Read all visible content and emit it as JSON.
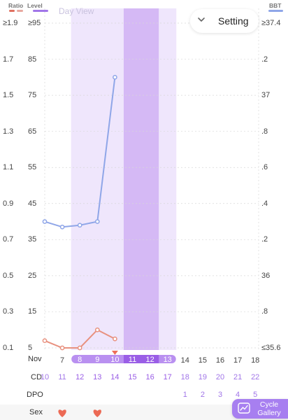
{
  "header": {
    "legend_ratio": "Ratio",
    "legend_level": "Level",
    "legend_bbt": "BBT",
    "view_title": "Day View",
    "setting_label": "Setting",
    "colors": {
      "ratio": "#e07060",
      "ratio_light": "#e8a8a0",
      "level": "#a176e8",
      "bbt": "#8fa6e8"
    }
  },
  "chart_data": {
    "type": "line",
    "y_ratio_ticks": [
      "≥1.9",
      "1.7",
      "1.5",
      "1.3",
      "1.1",
      "0.9",
      "0.7",
      "0.5",
      "0.3",
      "0.1"
    ],
    "y_level_ticks": [
      "≥95",
      "85",
      "75",
      "65",
      "55",
      "45",
      "35",
      "25",
      "15",
      "5"
    ],
    "y_bbt_ticks": [
      "≥37.4",
      ".2",
      "37",
      ".8",
      ".6",
      ".4",
      ".2",
      "36",
      ".8",
      "≤35.6"
    ],
    "ratio_range": [
      0.1,
      1.9
    ],
    "x_labels": [
      "Nov",
      "7",
      "8",
      "9",
      "10",
      "11",
      "12",
      "13",
      "14",
      "15",
      "16",
      "17",
      "18"
    ],
    "cd_label": "CD",
    "cd_values": [
      "10",
      "11",
      "12",
      "13",
      "14",
      "15",
      "16",
      "17",
      "18",
      "19",
      "20",
      "21",
      "22"
    ],
    "dpo_label": "DPO",
    "dpo_values": [
      "",
      "",
      "",
      "",
      "",
      "",
      "",
      "",
      "1",
      "2",
      "3",
      "4",
      "5"
    ],
    "sex_label": "Sex",
    "sex_days": [
      1,
      3
    ],
    "selected_day": 4,
    "fertile_window": [
      2,
      7
    ],
    "ovulation_days": [
      5,
      6
    ],
    "series": [
      {
        "axis": "ratio",
        "color": "#8fa6e8",
        "values": [
          0.8,
          0.77,
          0.78,
          0.8,
          1.6
        ]
      },
      {
        "axis": "ratio",
        "color": "#e8917f",
        "values": [
          0.14,
          0.1,
          0.1,
          0.2,
          0.15
        ]
      }
    ]
  },
  "gallery": {
    "line1": "Cycle",
    "line2": "Gallery"
  }
}
